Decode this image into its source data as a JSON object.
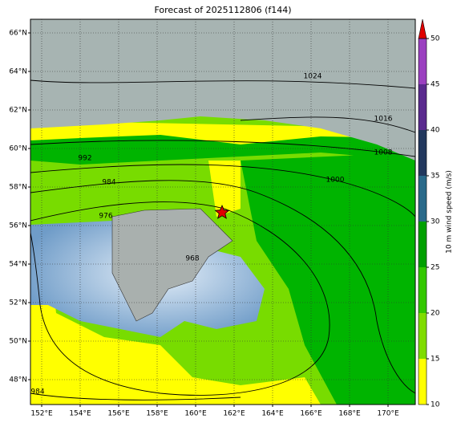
{
  "map": {
    "title": "Forecast of 2025112806 (f144)",
    "lon_ticks": [
      {
        "value": 152,
        "label": "152°E"
      },
      {
        "value": 154,
        "label": "154°E"
      },
      {
        "value": 156,
        "label": "156°E"
      },
      {
        "value": 158,
        "label": "158°E"
      },
      {
        "value": 160,
        "label": "160°E"
      },
      {
        "value": 162,
        "label": "162°E"
      },
      {
        "value": 164,
        "label": "164°E"
      },
      {
        "value": 166,
        "label": "166°E"
      },
      {
        "value": 168,
        "label": "168°E"
      },
      {
        "value": 170,
        "label": "170°E"
      }
    ],
    "lat_ticks": [
      {
        "value": 48,
        "label": "48°N"
      },
      {
        "value": 50,
        "label": "50°N"
      },
      {
        "value": 52,
        "label": "52°N"
      },
      {
        "value": 54,
        "label": "54°N"
      },
      {
        "value": 56,
        "label": "56°N"
      },
      {
        "value": 58,
        "label": "58°N"
      },
      {
        "value": 60,
        "label": "60°N"
      },
      {
        "value": 62,
        "label": "62°N"
      },
      {
        "value": 64,
        "label": "64°N"
      },
      {
        "value": 66,
        "label": "66°N"
      }
    ],
    "contour_labels": [
      "1024",
      "1016",
      "1008",
      "1000",
      "992",
      "984",
      "976",
      "968",
      "984"
    ],
    "colorbar": {
      "label": "10 m wind speed (m/s)",
      "lim": [
        10,
        50
      ],
      "ticks": [
        10,
        15,
        20,
        25,
        30,
        35,
        40,
        45,
        50
      ],
      "colors": [
        "#ffff00",
        "#80dc00",
        "#33c800",
        "#00a000",
        "#2a6a8a",
        "#22385e",
        "#5a2a8e",
        "#9b40c0"
      ],
      "extend_color": "#e00000"
    }
  }
}
